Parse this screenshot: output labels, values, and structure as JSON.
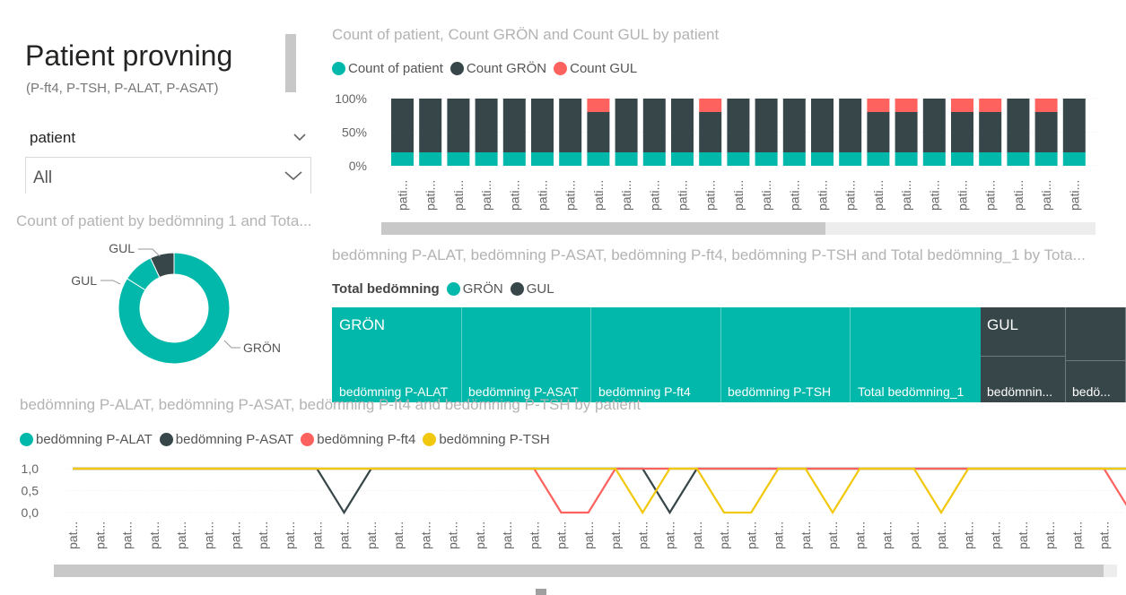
{
  "page": {
    "title": "Patient provning",
    "subtitle": "(P-ft4, P-TSH, P-ALAT, P-ASAT)"
  },
  "slicer": {
    "label": "patient",
    "value": "All",
    "collapse_icon": "chevron-down-icon",
    "dropdown_icon": "chevron-down-icon"
  },
  "colors": {
    "teal": "#01B8AA",
    "dark": "#374649",
    "red": "#FD625E",
    "yellow": "#F2C80F"
  },
  "bar_chart": {
    "title": "Count of patient, Count GRÖN and Count GUL by patient",
    "legend": [
      "Count of patient",
      "Count GRÖN",
      "Count GUL"
    ],
    "y_ticks": [
      "100%",
      "50%",
      "0%"
    ],
    "x_label": "pati..."
  },
  "donut_chart": {
    "title": "Count of patient by bedömning 1 and Tota...",
    "labels": [
      "GUL",
      "GUL",
      "GRÖN"
    ]
  },
  "treemap": {
    "title": "bedömning P-ALAT, bedömning P-ASAT, bedömning P-ft4, bedömning P-TSH and Total bedömning_1 by Tota...",
    "legend_title": "Total bedömning",
    "legend": [
      "GRÖN",
      "GUL"
    ],
    "groups": [
      {
        "name": "GRÖN",
        "cells": [
          "bedömning P-ALAT",
          "bedömning P-ASAT",
          "bedömning P-ft4",
          "bedömning P-TSH",
          "Total bedömning_1"
        ]
      },
      {
        "name": "GUL",
        "cells": [
          "bedömnin...",
          "bedö..."
        ]
      }
    ]
  },
  "line_chart": {
    "title": "bedömning P-ALAT, bedömning P-ASAT, bedömning P-ft4 and bedömning P-TSH by patient",
    "legend": [
      "bedömning P-ALAT",
      "bedömning P-ASAT",
      "bedömning P-ft4",
      "bedömning P-TSH"
    ],
    "y_ticks": [
      "1,0",
      "0,5",
      "0,0"
    ],
    "x_label": "pat..."
  },
  "chart_data": [
    {
      "type": "bar",
      "stacked": "100%",
      "title": "Count of patient, Count GRÖN and Count GUL by patient",
      "categories_label": "pati...",
      "category_count": 25,
      "series": [
        {
          "name": "Count of patient",
          "values": [
            20,
            20,
            20,
            20,
            20,
            20,
            20,
            20,
            20,
            20,
            20,
            20,
            20,
            20,
            20,
            20,
            20,
            20,
            20,
            20,
            20,
            20,
            20,
            20,
            20
          ]
        },
        {
          "name": "Count GRÖN",
          "values": [
            80,
            80,
            80,
            80,
            80,
            80,
            80,
            60,
            80,
            80,
            80,
            60,
            80,
            80,
            80,
            80,
            80,
            60,
            60,
            80,
            60,
            60,
            80,
            60,
            80
          ]
        },
        {
          "name": "Count GUL",
          "values": [
            0,
            0,
            0,
            0,
            0,
            0,
            0,
            20,
            0,
            0,
            0,
            20,
            0,
            0,
            0,
            0,
            0,
            20,
            20,
            0,
            20,
            20,
            0,
            20,
            0
          ]
        }
      ],
      "ylim": [
        0,
        100
      ]
    },
    {
      "type": "pie",
      "donut": true,
      "title": "Count of patient by bedömning 1 and Tota...",
      "slices": [
        {
          "label": "GRÖN",
          "value": 84
        },
        {
          "label": "GUL",
          "value": 9
        },
        {
          "label": "GUL",
          "value": 7
        }
      ]
    },
    {
      "type": "line",
      "title": "bedömning P-ALAT, bedömning P-ASAT, bedömning P-ft4 and bedömning P-TSH by patient",
      "categories_label": "pat...",
      "category_count": 40,
      "ylim": [
        0,
        1
      ],
      "series": [
        {
          "name": "bedömning P-ALAT",
          "values": [
            1,
            1,
            1,
            1,
            1,
            1,
            1,
            1,
            1,
            1,
            1,
            1,
            1,
            1,
            1,
            1,
            1,
            1,
            1,
            1,
            1,
            1,
            1,
            1,
            1,
            1,
            1,
            1,
            1,
            1,
            1,
            1,
            1,
            1,
            1,
            1,
            1,
            1,
            1,
            1
          ]
        },
        {
          "name": "bedömning P-ASAT",
          "values": [
            1,
            1,
            1,
            1,
            1,
            1,
            1,
            1,
            1,
            1,
            0,
            1,
            1,
            1,
            1,
            1,
            1,
            1,
            1,
            1,
            1,
            1,
            0,
            1,
            1,
            1,
            1,
            1,
            1,
            1,
            1,
            1,
            1,
            1,
            1,
            1,
            1,
            1,
            1,
            1
          ]
        },
        {
          "name": "bedömning P-ft4",
          "values": [
            1,
            1,
            1,
            1,
            1,
            1,
            1,
            1,
            1,
            1,
            1,
            1,
            1,
            1,
            1,
            1,
            1,
            1,
            0,
            0,
            1,
            1,
            1,
            1,
            1,
            1,
            1,
            1,
            1,
            1,
            1,
            1,
            1,
            1,
            1,
            1,
            1,
            1,
            1,
            0
          ]
        },
        {
          "name": "bedömning P-TSH",
          "values": [
            1,
            1,
            1,
            1,
            1,
            1,
            1,
            1,
            1,
            1,
            1,
            1,
            1,
            1,
            1,
            1,
            1,
            1,
            1,
            1,
            1,
            0,
            1,
            1,
            0,
            0,
            1,
            1,
            0,
            1,
            1,
            1,
            0,
            1,
            1,
            1,
            1,
            1,
            1,
            1
          ]
        }
      ]
    }
  ]
}
